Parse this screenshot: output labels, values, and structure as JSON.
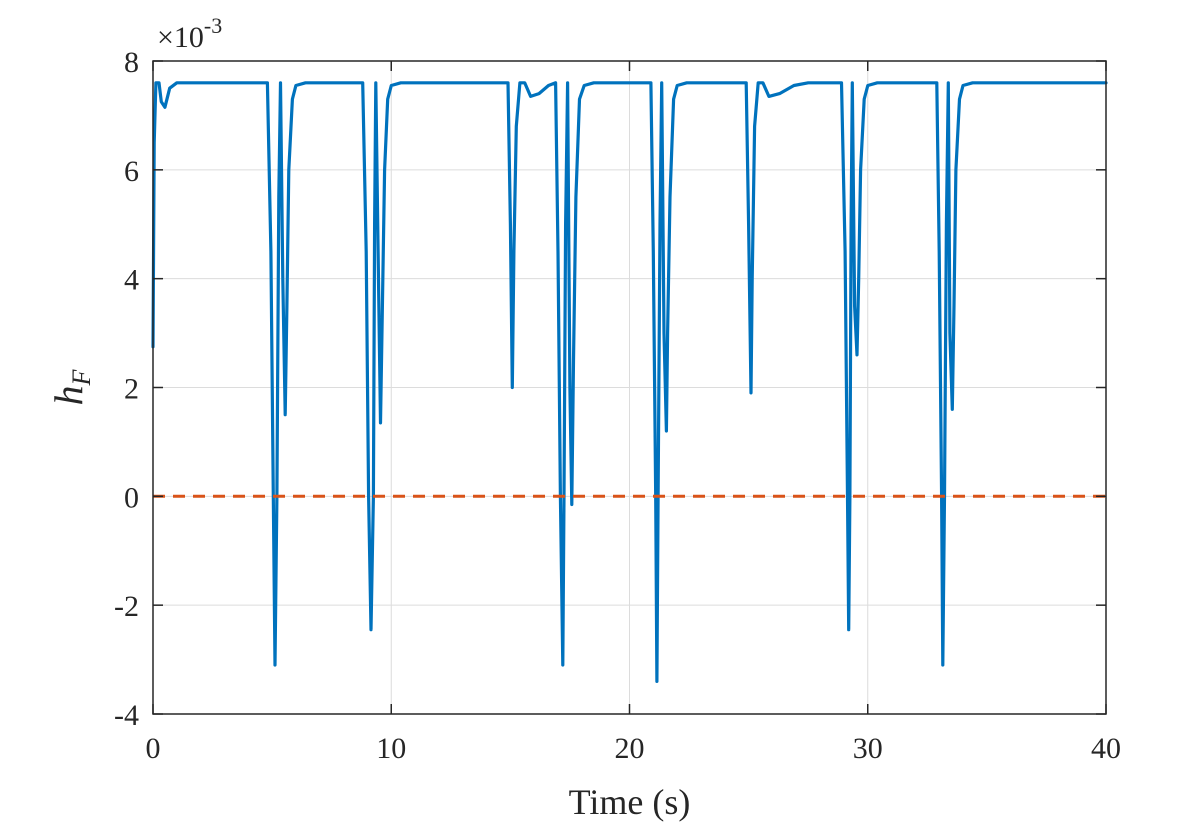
{
  "chart_data": {
    "type": "line",
    "xlabel": "Time (s)",
    "ylabel_main": "h",
    "ylabel_sub": "F",
    "y_multiplier_base": "×10",
    "y_multiplier_exp": "-3",
    "xlim": [
      0,
      40
    ],
    "ylim": [
      -4,
      8
    ],
    "xticks": [
      0,
      10,
      20,
      30,
      40
    ],
    "yticks": [
      -4,
      -2,
      0,
      2,
      4,
      6,
      8
    ],
    "grid": true,
    "series": [
      {
        "color": "#0072BD",
        "style": "solid",
        "x": [
          0.0,
          0.05,
          0.12,
          0.25,
          0.35,
          0.5,
          0.7,
          1.0,
          1.5,
          4.8,
          4.95,
          5.05,
          5.12,
          5.2,
          5.28,
          5.35,
          5.45,
          5.55,
          5.62,
          5.7,
          5.85,
          6.0,
          6.4,
          8.8,
          8.95,
          9.05,
          9.15,
          9.25,
          9.3,
          9.35,
          9.45,
          9.55,
          9.63,
          9.72,
          9.85,
          10.0,
          10.4,
          14.9,
          15.0,
          15.08,
          15.15,
          15.25,
          15.4,
          15.6,
          15.85,
          16.2,
          16.6,
          16.9,
          17.0,
          17.1,
          17.2,
          17.25,
          17.32,
          17.4,
          17.5,
          17.58,
          17.65,
          17.75,
          17.9,
          18.1,
          18.5,
          20.9,
          21.0,
          21.1,
          21.15,
          21.2,
          21.28,
          21.35,
          21.45,
          21.55,
          21.6,
          21.7,
          21.85,
          22.0,
          22.4,
          24.9,
          25.0,
          25.1,
          25.15,
          25.25,
          25.4,
          25.6,
          25.85,
          26.3,
          26.9,
          27.5,
          28.2,
          28.9,
          29.05,
          29.15,
          29.2,
          29.25,
          29.3,
          29.35,
          29.45,
          29.55,
          29.62,
          29.7,
          29.85,
          30.0,
          30.4,
          32.9,
          33.0,
          33.1,
          33.15,
          33.22,
          33.3,
          33.38,
          33.45,
          33.55,
          33.62,
          33.7,
          33.85,
          34.0,
          34.4,
          40.0
        ],
        "y": [
          2.75,
          6.5,
          7.6,
          7.6,
          7.25,
          7.15,
          7.5,
          7.6,
          7.6,
          7.6,
          4.5,
          0.0,
          -3.1,
          0.0,
          5.5,
          7.6,
          4.0,
          1.5,
          3.5,
          6.0,
          7.3,
          7.55,
          7.6,
          7.6,
          4.5,
          0.0,
          -2.45,
          0.0,
          5.0,
          7.6,
          4.5,
          1.35,
          3.5,
          6.0,
          7.3,
          7.55,
          7.6,
          7.6,
          5.0,
          2.0,
          4.5,
          6.8,
          7.6,
          7.6,
          7.35,
          7.4,
          7.55,
          7.6,
          4.5,
          0.0,
          -3.1,
          0.0,
          5.0,
          7.6,
          2.0,
          -0.15,
          2.5,
          5.5,
          7.3,
          7.55,
          7.6,
          7.6,
          4.5,
          0.0,
          -3.4,
          0.0,
          5.0,
          7.6,
          3.0,
          1.2,
          3.0,
          5.5,
          7.3,
          7.55,
          7.6,
          7.6,
          5.0,
          1.9,
          4.0,
          6.8,
          7.6,
          7.6,
          7.35,
          7.4,
          7.55,
          7.6,
          7.6,
          7.6,
          4.5,
          0.0,
          -2.45,
          0.0,
          5.0,
          7.6,
          3.5,
          2.6,
          4.0,
          6.0,
          7.3,
          7.55,
          7.6,
          7.6,
          4.5,
          0.0,
          -3.1,
          0.0,
          5.0,
          7.6,
          3.0,
          1.6,
          3.5,
          6.0,
          7.3,
          7.55,
          7.6,
          7.6
        ]
      },
      {
        "color": "#D95319",
        "style": "dashed",
        "x": [
          0,
          40
        ],
        "y": [
          0,
          0
        ]
      }
    ]
  }
}
